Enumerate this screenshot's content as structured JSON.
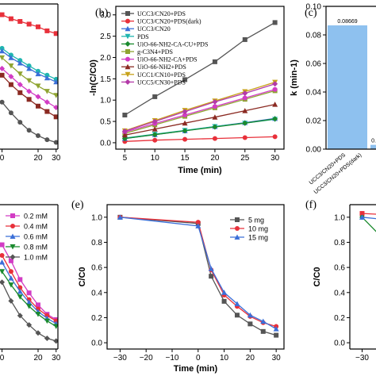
{
  "chart_data": [
    {
      "id": "a",
      "type": "line",
      "x_ticks": [
        "0",
        "20",
        "30"
      ],
      "series": [
        {
          "color": "#e8303a",
          "x": [
            0,
            5,
            10,
            15,
            20,
            25,
            30
          ],
          "y": [
            1.0,
            0.97,
            0.95,
            0.93,
            0.91,
            0.88,
            0.86
          ]
        },
        {
          "color": "#1fb5b0",
          "x": [
            0,
            5,
            10,
            15,
            20,
            25,
            30
          ],
          "y": [
            0.75,
            0.7,
            0.66,
            0.62,
            0.58,
            0.55,
            0.52
          ]
        },
        {
          "color": "#3b6fd8",
          "x": [
            0,
            5,
            10,
            15,
            20,
            25,
            30
          ],
          "y": [
            0.73,
            0.68,
            0.64,
            0.6,
            0.56,
            0.53,
            0.5
          ]
        },
        {
          "color": "#8fa431",
          "x": [
            0,
            5,
            10,
            15,
            20,
            25,
            30
          ],
          "y": [
            0.68,
            0.62,
            0.56,
            0.51,
            0.47,
            0.43,
            0.4
          ]
        },
        {
          "color": "#d23cc4",
          "x": [
            0,
            5,
            10,
            15,
            20,
            25,
            30
          ],
          "y": [
            0.6,
            0.54,
            0.48,
            0.43,
            0.39,
            0.35,
            0.31
          ]
        },
        {
          "color": "#8b2a22",
          "x": [
            0,
            5,
            10,
            15,
            20,
            25,
            30
          ],
          "y": [
            0.55,
            0.48,
            0.42,
            0.37,
            0.32,
            0.28,
            0.24
          ]
        },
        {
          "color": "#555555",
          "x": [
            0,
            5,
            10,
            15,
            20,
            25,
            30
          ],
          "y": [
            0.35,
            0.27,
            0.2,
            0.14,
            0.1,
            0.07,
            0.05
          ]
        }
      ]
    },
    {
      "id": "b",
      "type": "line",
      "panel_label": "(b)",
      "xlabel": "Time (min)",
      "ylabel": "-ln(C/C0)",
      "xlim": [
        3.5,
        31.5
      ],
      "ylim": [
        -0.15,
        3.2
      ],
      "x_ticks": [
        5,
        10,
        15,
        20,
        25,
        30
      ],
      "y_ticks": [
        "0.0",
        "0.5",
        "1.0",
        "1.5",
        "2.0",
        "2.5",
        "3.0"
      ],
      "legend": [
        "UCC3/CN20+PDS",
        "UCC3/CN20+PDS(dark)",
        "UCC3/CN20",
        "PDS",
        "UiO-66-NH2-CA-CU+PDS",
        "g-C3N4+PDS",
        "UiO-66-NH2-CA+PDS",
        "UiO-66-NH2+PDS",
        "UCC1/CN10+PDS",
        "UCC5/CN30+PDS"
      ],
      "series": [
        {
          "name": "UCC3/CN20+PDS",
          "color": "#555555",
          "x": [
            5,
            10,
            15,
            20,
            25,
            30
          ],
          "y": [
            0.65,
            1.08,
            1.48,
            1.9,
            2.42,
            2.82
          ]
        },
        {
          "name": "UCC3/CN20+PDS(dark)",
          "color": "#e8303a",
          "x": [
            5,
            10,
            15,
            20,
            25,
            30
          ],
          "y": [
            0.03,
            0.06,
            0.08,
            0.1,
            0.12,
            0.14
          ]
        },
        {
          "name": "UCC3/CN20",
          "color": "#3b6fd8",
          "x": [
            5,
            10,
            15,
            20,
            25,
            30
          ],
          "y": [
            0.1,
            0.19,
            0.28,
            0.38,
            0.47,
            0.57
          ]
        },
        {
          "name": "PDS",
          "color": "#1fb5b0",
          "x": [
            5,
            10,
            15,
            20,
            25,
            30
          ],
          "y": [
            0.11,
            0.2,
            0.29,
            0.38,
            0.46,
            0.55
          ]
        },
        {
          "name": "UiO-66-NH2-CA-CU+PDS",
          "color": "#1a8a2e",
          "x": [
            5,
            10,
            15,
            20,
            25,
            30
          ],
          "y": [
            0.1,
            0.19,
            0.28,
            0.37,
            0.46,
            0.56
          ]
        },
        {
          "name": "g-C3N4+PDS",
          "color": "#8fa431",
          "x": [
            5,
            10,
            15,
            20,
            25,
            30
          ],
          "y": [
            0.22,
            0.42,
            0.62,
            0.82,
            1.02,
            1.22
          ]
        },
        {
          "name": "UiO-66-NH2-CA+PDS",
          "color": "#d23cc4",
          "x": [
            5,
            10,
            15,
            20,
            25,
            30
          ],
          "y": [
            0.25,
            0.45,
            0.65,
            0.85,
            1.05,
            1.25
          ]
        },
        {
          "name": "UiO-66-NH2+PDS",
          "color": "#8b2a22",
          "x": [
            5,
            10,
            15,
            20,
            25,
            30
          ],
          "y": [
            0.18,
            0.32,
            0.46,
            0.6,
            0.75,
            0.9
          ]
        },
        {
          "name": "UCC1/CN10+PDS",
          "color": "#c8a21a",
          "x": [
            5,
            10,
            15,
            20,
            25,
            30
          ],
          "y": [
            0.28,
            0.52,
            0.76,
            0.98,
            1.2,
            1.42
          ]
        },
        {
          "name": "UCC5/CN30+PDS",
          "color": "#b33aa8",
          "x": [
            5,
            10,
            15,
            20,
            25,
            30
          ],
          "y": [
            0.27,
            0.5,
            0.73,
            0.96,
            1.16,
            1.38
          ]
        }
      ]
    },
    {
      "id": "c",
      "type": "bar",
      "panel_label": "(c)",
      "ylabel": "k (min-1)",
      "ylim": [
        0,
        0.1
      ],
      "y_ticks": [
        "0.00",
        "0.02",
        "0.04",
        "0.06",
        "0.08",
        "0.10"
      ],
      "categories": [
        "UCC3/CN20+PDS",
        "UCC3/CN20+PDS(dark)"
      ],
      "values": [
        0.08669,
        0.003
      ],
      "data_labels": [
        "0.08669",
        "0."
      ]
    },
    {
      "id": "d",
      "type": "line",
      "x_ticks": [
        "0",
        "20",
        "30"
      ],
      "legend": [
        "0.2 mM",
        "0.4 mM",
        "0.6 mM",
        "0.8 mM",
        "1.0 mM"
      ],
      "series": [
        {
          "name": "0.2 mM",
          "color": "#d23cc4",
          "x": [
            0,
            5,
            10,
            15,
            20,
            25,
            30
          ],
          "y": [
            0.78,
            0.66,
            0.52,
            0.42,
            0.33,
            0.26,
            0.22
          ]
        },
        {
          "name": "0.4 mM",
          "color": "#e8303a",
          "x": [
            0,
            5,
            10,
            15,
            20,
            25,
            30
          ],
          "y": [
            0.7,
            0.58,
            0.46,
            0.37,
            0.3,
            0.25,
            0.21
          ]
        },
        {
          "name": "0.6 mM",
          "color": "#3b6fd8",
          "x": [
            0,
            5,
            10,
            15,
            20,
            25,
            30
          ],
          "y": [
            0.65,
            0.53,
            0.43,
            0.35,
            0.28,
            0.23,
            0.19
          ]
        },
        {
          "name": "0.8 mM",
          "color": "#1a8a2e",
          "x": [
            0,
            5,
            10,
            15,
            20,
            25,
            30
          ],
          "y": [
            0.58,
            0.48,
            0.39,
            0.32,
            0.26,
            0.21,
            0.17
          ]
        },
        {
          "name": "1.0 mM",
          "color": "#555555",
          "x": [
            0,
            5,
            10,
            15,
            20,
            25,
            30
          ],
          "y": [
            0.5,
            0.36,
            0.25,
            0.18,
            0.12,
            0.08,
            0.06
          ]
        }
      ]
    },
    {
      "id": "e",
      "type": "line",
      "panel_label": "(e)",
      "xlabel": "Time (min)",
      "ylabel": "C/C0",
      "xlim": [
        -35,
        33
      ],
      "ylim": [
        -0.05,
        1.1
      ],
      "x_ticks": [
        -30,
        -20,
        -10,
        0,
        10,
        20,
        30
      ],
      "y_ticks": [
        "0.0",
        "0.2",
        "0.4",
        "0.6",
        "0.8",
        "1.0"
      ],
      "legend": [
        "5 mg",
        "10 mg",
        "15 mg"
      ],
      "series": [
        {
          "name": "5 mg",
          "color": "#555555",
          "x": [
            -30,
            0,
            5,
            10,
            15,
            20,
            25,
            30
          ],
          "y": [
            1.0,
            0.95,
            0.53,
            0.33,
            0.22,
            0.15,
            0.09,
            0.06
          ]
        },
        {
          "name": "10 mg",
          "color": "#e8303a",
          "x": [
            -30,
            0,
            5,
            10,
            15,
            20,
            25,
            30
          ],
          "y": [
            1.0,
            0.96,
            0.58,
            0.38,
            0.29,
            0.21,
            0.16,
            0.13
          ]
        },
        {
          "name": "15 mg",
          "color": "#3b6fd8",
          "x": [
            -30,
            0,
            5,
            10,
            15,
            20,
            25,
            30
          ],
          "y": [
            1.0,
            0.93,
            0.59,
            0.4,
            0.31,
            0.22,
            0.17,
            0.11
          ]
        }
      ]
    },
    {
      "id": "f",
      "type": "line",
      "panel_label": "(f)",
      "ylabel": "C/C0",
      "ylim": [
        -0.05,
        1.1
      ],
      "y_ticks": [
        "0.0",
        "0.2",
        "0.4",
        "0.6",
        "0.8",
        "1.0"
      ],
      "x_ticks": [
        "-30"
      ],
      "series": [
        {
          "color": "#e8303a",
          "x": [
            -30,
            -20
          ],
          "y": [
            1.03,
            1.02
          ]
        },
        {
          "color": "#1a8a2e",
          "x": [
            -30,
            -20
          ],
          "y": [
            1.0,
            0.8
          ]
        },
        {
          "color": "#3b6fd8",
          "x": [
            -30,
            -20
          ],
          "y": [
            1.0,
            0.98
          ]
        }
      ]
    }
  ]
}
